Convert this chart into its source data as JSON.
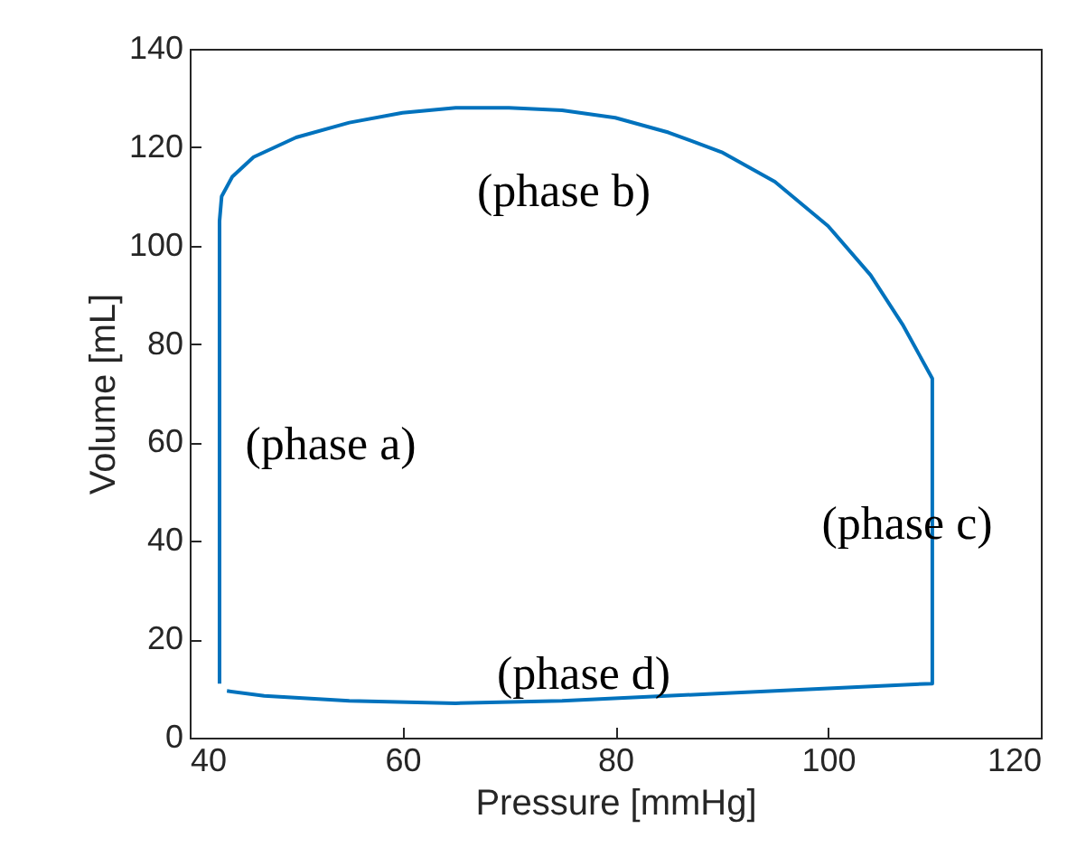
{
  "chart_data": {
    "type": "line",
    "xlabel": "Pressure [mmHg]",
    "ylabel": "Volume [mL]",
    "xlim": [
      40,
      120
    ],
    "ylim": [
      0,
      140
    ],
    "xticks": [
      40,
      60,
      80,
      100,
      120
    ],
    "yticks": [
      0,
      20,
      40,
      60,
      80,
      100,
      120,
      140
    ],
    "grid": false,
    "series": [
      {
        "color": "#0072bd",
        "x": [
          42.8,
          42.8,
          43,
          44,
          46,
          50,
          55,
          60,
          65,
          70,
          75,
          80,
          85,
          90,
          95,
          100,
          104,
          107,
          109.8,
          109.8,
          90,
          75,
          65,
          55,
          47,
          43.5
        ],
        "values": [
          11,
          105,
          110,
          114,
          118,
          122,
          125,
          127,
          128,
          128,
          127.5,
          126,
          123,
          119,
          113,
          104,
          94,
          84,
          73,
          11,
          9,
          7.5,
          7,
          7.5,
          8.5,
          9.5
        ]
      }
    ],
    "annotations": [
      "(phase a)",
      "(phase b)",
      "(phase c)",
      "(phase d)"
    ]
  }
}
